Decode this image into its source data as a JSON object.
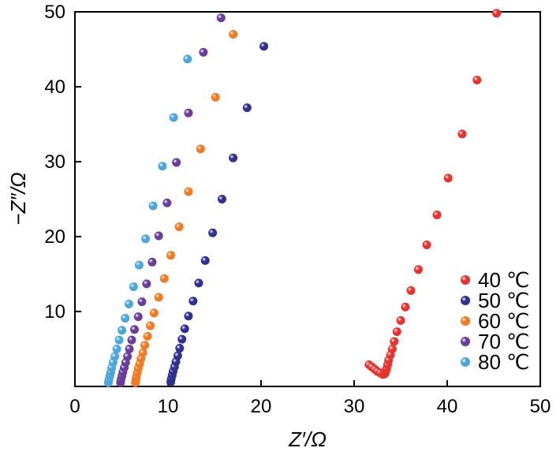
{
  "chart_data": {
    "type": "scatter",
    "xlabel": "Z′/Ω",
    "ylabel": "−Z″/Ω",
    "xlim": [
      0,
      50
    ],
    "ylim": [
      0,
      50
    ],
    "xticks": [
      0,
      10,
      20,
      30,
      40,
      50
    ],
    "yticks": [
      10,
      20,
      30,
      40,
      50
    ],
    "grid": false,
    "legend_position": "bottom-right",
    "series": [
      {
        "name": "40 ℃",
        "color": "#e8322d",
        "points": [
          [
            31.6,
            2.9
          ],
          [
            31.9,
            2.6
          ],
          [
            32.2,
            2.3
          ],
          [
            32.5,
            2.0
          ],
          [
            32.8,
            1.8
          ],
          [
            33.1,
            1.6
          ],
          [
            33.3,
            1.7
          ],
          [
            33.4,
            2.0
          ],
          [
            33.5,
            2.4
          ],
          [
            33.6,
            2.9
          ],
          [
            33.7,
            3.5
          ],
          [
            33.9,
            4.2
          ],
          [
            34.1,
            5.0
          ],
          [
            34.3,
            6.0
          ],
          [
            34.6,
            7.3
          ],
          [
            35.0,
            8.8
          ],
          [
            35.5,
            10.6
          ],
          [
            36.1,
            12.8
          ],
          [
            36.9,
            15.6
          ],
          [
            37.8,
            18.9
          ],
          [
            38.9,
            22.9
          ],
          [
            40.1,
            27.8
          ],
          [
            41.6,
            33.7
          ],
          [
            43.2,
            40.9
          ],
          [
            45.3,
            49.8
          ]
        ]
      },
      {
        "name": "50 ℃",
        "color": "#2e3192",
        "points": [
          [
            10.3,
            0.6
          ],
          [
            10.35,
            1.0
          ],
          [
            10.45,
            1.5
          ],
          [
            10.55,
            2.0
          ],
          [
            10.7,
            2.6
          ],
          [
            10.85,
            3.3
          ],
          [
            11.05,
            4.1
          ],
          [
            11.25,
            5.1
          ],
          [
            11.5,
            6.3
          ],
          [
            11.8,
            7.7
          ],
          [
            12.2,
            9.4
          ],
          [
            12.7,
            11.4
          ],
          [
            13.3,
            13.8
          ],
          [
            14.0,
            16.8
          ],
          [
            14.8,
            20.5
          ],
          [
            15.8,
            25.0
          ],
          [
            17.0,
            30.5
          ],
          [
            18.5,
            37.2
          ],
          [
            20.3,
            45.4
          ]
        ]
      },
      {
        "name": "60 ℃",
        "color": "#f47a20",
        "points": [
          [
            6.5,
            0.5
          ],
          [
            6.55,
            0.9
          ],
          [
            6.6,
            1.3
          ],
          [
            6.7,
            1.8
          ],
          [
            6.8,
            2.4
          ],
          [
            6.95,
            3.0
          ],
          [
            7.1,
            3.7
          ],
          [
            7.3,
            4.5
          ],
          [
            7.5,
            5.5
          ],
          [
            7.8,
            6.7
          ],
          [
            8.1,
            8.1
          ],
          [
            8.5,
            9.8
          ],
          [
            9.0,
            11.9
          ],
          [
            9.6,
            14.4
          ],
          [
            10.3,
            17.5
          ],
          [
            11.2,
            21.3
          ],
          [
            12.2,
            26.0
          ],
          [
            13.5,
            31.7
          ],
          [
            15.1,
            38.6
          ],
          [
            17.0,
            47.0
          ]
        ]
      },
      {
        "name": "70 ℃",
        "color": "#6a3d9a",
        "points": [
          [
            4.9,
            0.5
          ],
          [
            4.95,
            0.9
          ],
          [
            5.05,
            1.4
          ],
          [
            5.15,
            1.9
          ],
          [
            5.3,
            2.5
          ],
          [
            5.45,
            3.2
          ],
          [
            5.65,
            4.0
          ],
          [
            5.85,
            5.0
          ],
          [
            6.1,
            6.2
          ],
          [
            6.4,
            7.6
          ],
          [
            6.8,
            9.3
          ],
          [
            7.2,
            11.3
          ],
          [
            7.7,
            13.7
          ],
          [
            8.3,
            16.6
          ],
          [
            9.0,
            20.1
          ],
          [
            9.9,
            24.5
          ],
          [
            10.9,
            29.9
          ],
          [
            12.2,
            36.5
          ],
          [
            13.8,
            44.6
          ],
          [
            15.7,
            49.2
          ]
        ]
      },
      {
        "name": "80 ℃",
        "color": "#4ba6dc",
        "points": [
          [
            3.6,
            0.5
          ],
          [
            3.65,
            0.9
          ],
          [
            3.75,
            1.4
          ],
          [
            3.85,
            1.9
          ],
          [
            3.95,
            2.5
          ],
          [
            4.1,
            3.2
          ],
          [
            4.3,
            4.0
          ],
          [
            4.5,
            5.0
          ],
          [
            4.75,
            6.2
          ],
          [
            5.05,
            7.5
          ],
          [
            5.4,
            9.1
          ],
          [
            5.8,
            11.0
          ],
          [
            6.3,
            13.3
          ],
          [
            6.9,
            16.2
          ],
          [
            7.6,
            19.7
          ],
          [
            8.4,
            24.1
          ],
          [
            9.4,
            29.4
          ],
          [
            10.6,
            35.9
          ],
          [
            12.1,
            43.7
          ]
        ]
      }
    ]
  }
}
